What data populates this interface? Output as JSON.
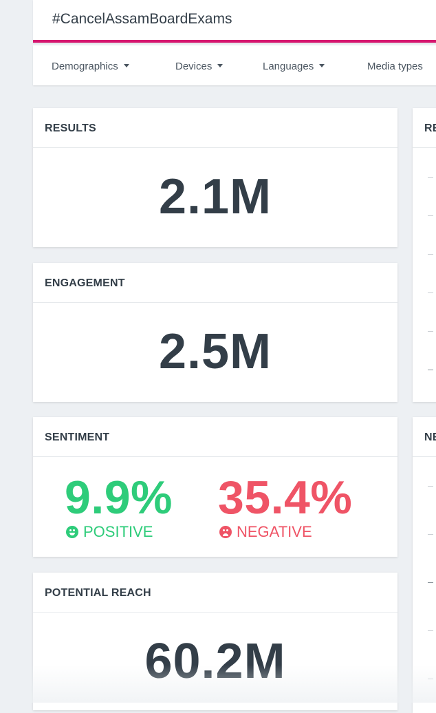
{
  "search": {
    "query": "#CancelAssamBoardExams"
  },
  "filters": [
    {
      "label": "Demographics"
    },
    {
      "label": "Devices"
    },
    {
      "label": "Languages"
    },
    {
      "label": "Media types"
    }
  ],
  "cards": {
    "results": {
      "title": "RESULTS",
      "value": "2.1M"
    },
    "engagement": {
      "title": "ENGAGEMENT",
      "value": "2.5M"
    },
    "sentiment": {
      "title": "SENTIMENT",
      "positive": {
        "value": "9.9%",
        "label": "POSITIVE",
        "color": "#2ecc7a",
        "icon": "smile-icon"
      },
      "negative": {
        "value": "35.4%",
        "label": "NEGATIVE",
        "color": "#ef5466",
        "icon": "frown-icon"
      }
    },
    "potential_reach": {
      "title": "POTENTIAL REACH",
      "value": "60.2M"
    }
  },
  "right_cards": [
    {
      "title_fragment": "RE"
    },
    {
      "title_fragment": "NE"
    }
  ],
  "colors": {
    "accent": "#d6166f",
    "background": "#edf0f3",
    "text": "#333e48"
  }
}
